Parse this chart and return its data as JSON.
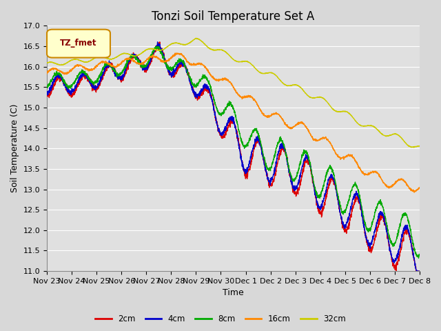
{
  "title": "Tonzi Soil Temperature Set A",
  "xlabel": "Time",
  "ylabel": "Soil Temperature (C)",
  "ylim": [
    11.0,
    17.0
  ],
  "yticks": [
    11.0,
    11.5,
    12.0,
    12.5,
    13.0,
    13.5,
    14.0,
    14.5,
    15.0,
    15.5,
    16.0,
    16.5,
    17.0
  ],
  "xtick_labels": [
    "Nov 23",
    "Nov 24",
    "Nov 25",
    "Nov 26",
    "Nov 27",
    "Nov 28",
    "Nov 29",
    "Nov 30",
    "Dec 1",
    "Dec 2",
    "Dec 3",
    "Dec 4",
    "Dec 5",
    "Dec 6",
    "Dec 7",
    "Dec 8"
  ],
  "legend_label": "TZ_fmet",
  "series_labels": [
    "2cm",
    "4cm",
    "8cm",
    "16cm",
    "32cm"
  ],
  "series_colors": [
    "#dd0000",
    "#0000cc",
    "#00aa00",
    "#ff8800",
    "#cccc00"
  ],
  "line_width": 1.0,
  "fig_bg_color": "#d8d8d8",
  "plot_bg_color": "#e0e0e0",
  "grid_color": "#ffffff",
  "title_fontsize": 12,
  "axis_fontsize": 9,
  "tick_fontsize": 8,
  "legend_box_color": "#ffffcc",
  "legend_box_edge": "#cc8800",
  "legend_text_color": "#880000"
}
